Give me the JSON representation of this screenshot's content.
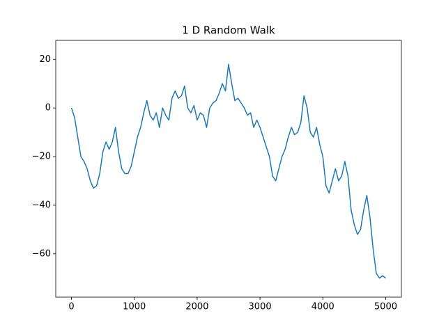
{
  "chart_data": {
    "type": "line",
    "title": "1 D Random Walk",
    "x": [
      0,
      50,
      100,
      150,
      200,
      250,
      300,
      350,
      400,
      450,
      500,
      550,
      600,
      650,
      700,
      750,
      800,
      850,
      900,
      950,
      1000,
      1050,
      1100,
      1150,
      1200,
      1250,
      1300,
      1350,
      1400,
      1450,
      1500,
      1550,
      1600,
      1650,
      1700,
      1750,
      1800,
      1850,
      1900,
      1950,
      2000,
      2050,
      2100,
      2150,
      2200,
      2250,
      2300,
      2350,
      2400,
      2450,
      2500,
      2550,
      2600,
      2650,
      2700,
      2750,
      2800,
      2850,
      2900,
      2950,
      3000,
      3050,
      3100,
      3150,
      3200,
      3250,
      3300,
      3350,
      3400,
      3450,
      3500,
      3550,
      3600,
      3650,
      3700,
      3750,
      3800,
      3850,
      3900,
      3950,
      4000,
      4050,
      4100,
      4150,
      4200,
      4250,
      4300,
      4350,
      4400,
      4450,
      4500,
      4550,
      4600,
      4650,
      4700,
      4750,
      4800,
      4850,
      4900,
      4950,
      5000
    ],
    "values": [
      0,
      -4,
      -12,
      -20,
      -22,
      -25,
      -30,
      -33,
      -32,
      -27,
      -18,
      -14,
      -17,
      -14,
      -8,
      -18,
      -25,
      -27,
      -27,
      -24,
      -18,
      -12,
      -8,
      -2,
      3,
      -3,
      -5,
      -2,
      -8,
      0,
      -3,
      -5,
      4,
      7,
      4,
      5,
      9,
      0,
      -2,
      1,
      -5,
      -2,
      -3,
      -8,
      0,
      2,
      3,
      6,
      10,
      7,
      18,
      10,
      3,
      4,
      2,
      0,
      -3,
      -2,
      -8,
      -5,
      -8,
      -12,
      -16,
      -20,
      -28,
      -30,
      -25,
      -20,
      -17,
      -12,
      -8,
      -11,
      -10,
      -6,
      5,
      0,
      -10,
      -12,
      -8,
      -15,
      -20,
      -32,
      -35,
      -30,
      -25,
      -30,
      -28,
      -22,
      -28,
      -42,
      -48,
      -52,
      -50,
      -42,
      -36,
      -45,
      -58,
      -68,
      -70,
      -69,
      -70
    ],
    "color": "#1f77b4",
    "xlim": [
      -250,
      5250
    ],
    "xticks": [
      0,
      1000,
      2000,
      3000,
      4000,
      5000
    ],
    "ylim": [
      -77.8,
      27.8
    ],
    "yticks": [
      {
        "value": -60,
        "label": "−60"
      },
      {
        "value": -40,
        "label": "−40"
      },
      {
        "value": -20,
        "label": "−20"
      },
      0,
      20
    ]
  }
}
